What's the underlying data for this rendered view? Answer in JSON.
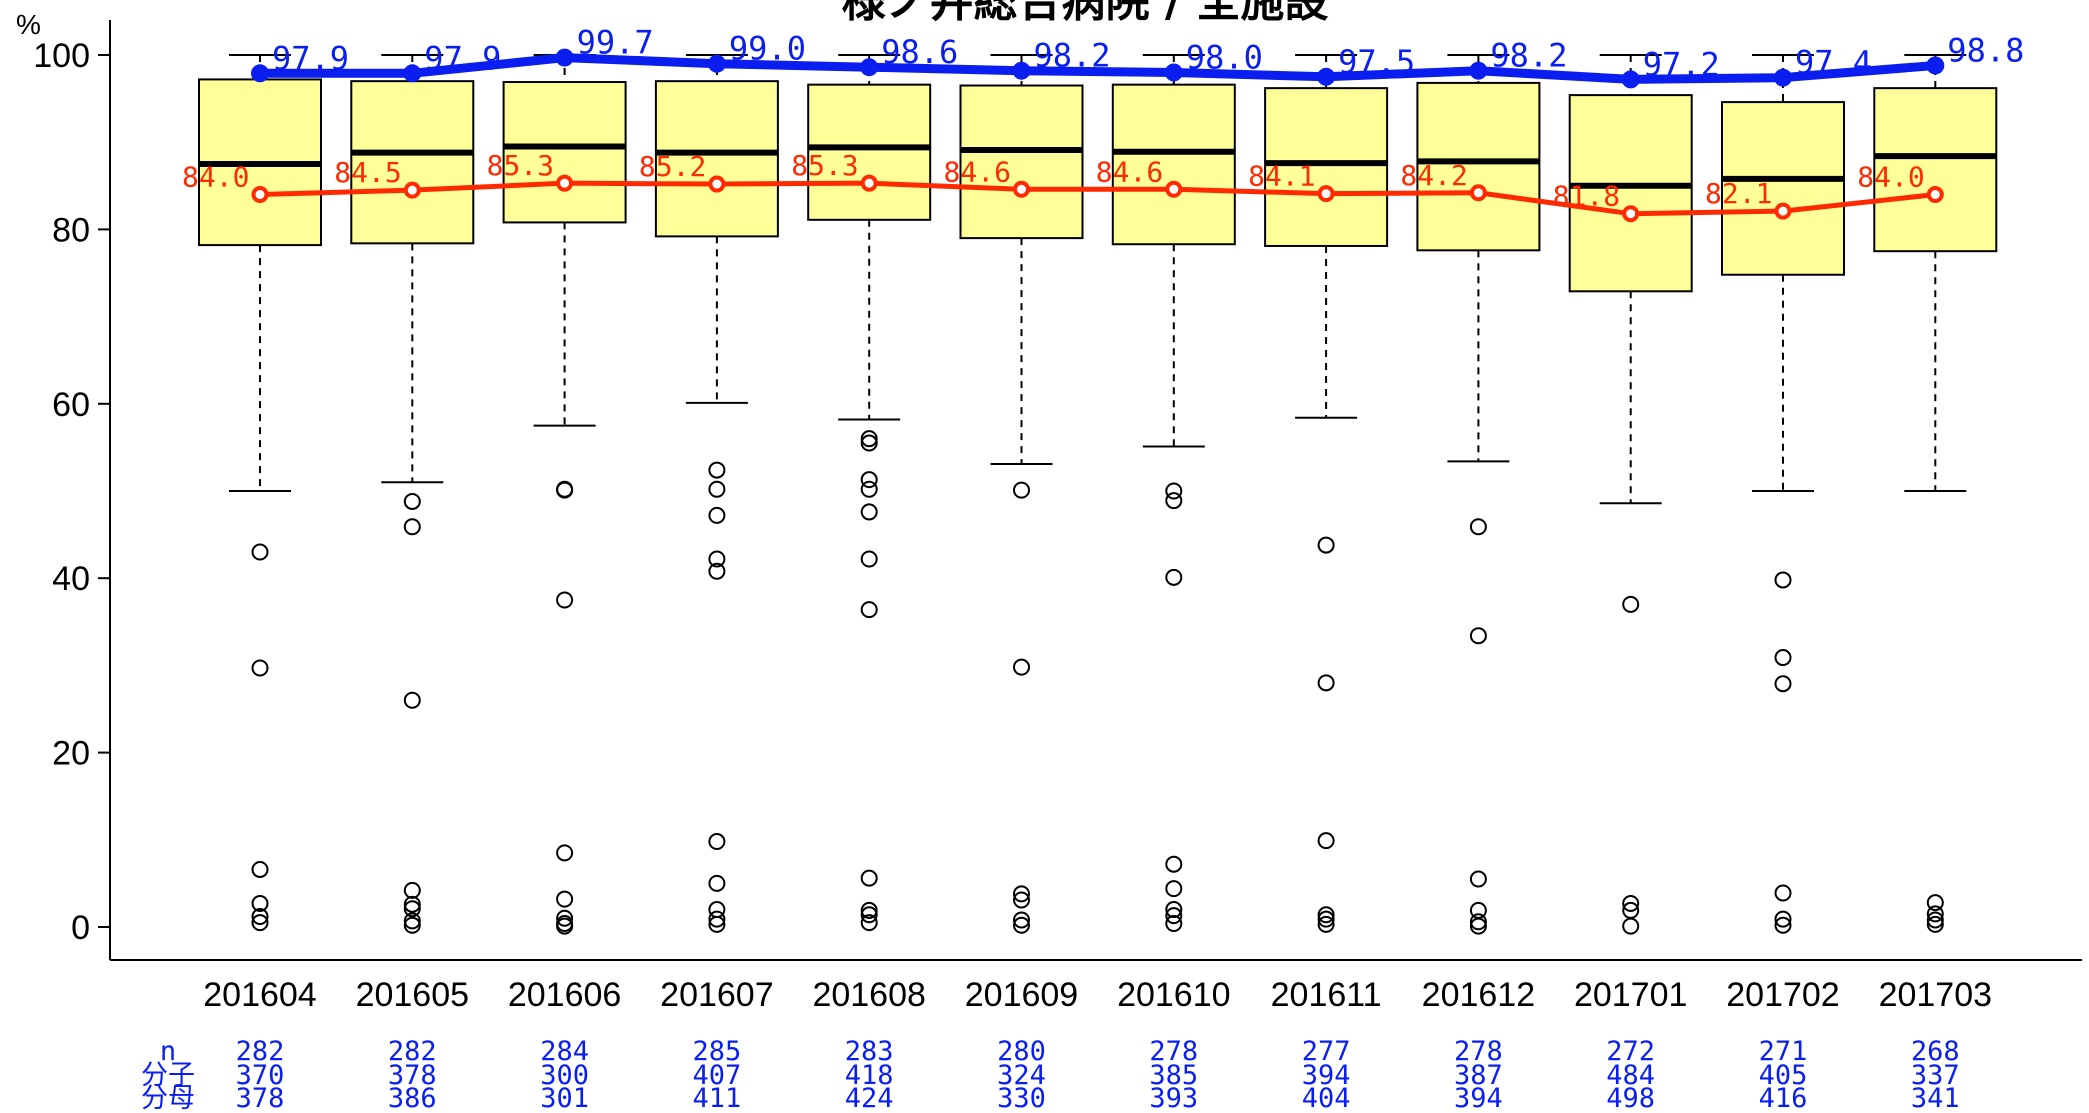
{
  "chart_data": {
    "type": "boxplot",
    "title": "様ノ井総合病院 / 全施設",
    "ylabel": "%",
    "ylim": [
      0,
      100
    ],
    "yticks": [
      0,
      20,
      40,
      60,
      80,
      100
    ],
    "categories": [
      "201604",
      "201605",
      "201606",
      "201607",
      "201608",
      "201609",
      "201610",
      "201611",
      "201612",
      "201701",
      "201702",
      "201703"
    ],
    "boxes": [
      {
        "whisker_low": 50.0,
        "q1": 78.2,
        "median": 87.5,
        "q3": 97.2,
        "whisker_high": 100,
        "outliers": [
          43.0,
          29.7,
          6.6,
          2.7,
          1.2,
          0.5
        ]
      },
      {
        "whisker_low": 51.0,
        "q1": 78.4,
        "median": 88.8,
        "q3": 97.0,
        "whisker_high": 100,
        "outliers": [
          48.8,
          45.9,
          26.0,
          4.2,
          2.6,
          2.1,
          0.7,
          0.2
        ]
      },
      {
        "whisker_low": 57.5,
        "q1": 80.8,
        "median": 89.5,
        "q3": 96.9,
        "whisker_high": 100,
        "outliers": [
          50.2,
          50.1,
          37.5,
          8.5,
          3.2,
          1.0,
          0.4,
          0.1
        ]
      },
      {
        "whisker_low": 60.1,
        "q1": 79.2,
        "median": 88.8,
        "q3": 97.0,
        "whisker_high": 100,
        "outliers": [
          52.4,
          50.2,
          47.2,
          42.2,
          40.8,
          9.8,
          5.0,
          2.0,
          0.9,
          0.3
        ]
      },
      {
        "whisker_low": 58.2,
        "q1": 81.1,
        "median": 89.4,
        "q3": 96.6,
        "whisker_high": 100,
        "outliers": [
          56.0,
          55.5,
          51.3,
          50.2,
          47.6,
          42.2,
          36.4,
          5.6,
          1.9,
          1.4,
          0.5
        ]
      },
      {
        "whisker_low": 53.1,
        "q1": 79.0,
        "median": 89.1,
        "q3": 96.5,
        "whisker_high": 100,
        "outliers": [
          50.1,
          29.8,
          3.8,
          3.1,
          0.8,
          0.2
        ]
      },
      {
        "whisker_low": 55.1,
        "q1": 78.3,
        "median": 88.9,
        "q3": 96.6,
        "whisker_high": 100,
        "outliers": [
          50.0,
          48.9,
          40.1,
          7.2,
          4.4,
          2.0,
          1.3,
          0.4
        ]
      },
      {
        "whisker_low": 58.4,
        "q1": 78.1,
        "median": 87.6,
        "q3": 96.2,
        "whisker_high": 100,
        "outliers": [
          43.8,
          28.0,
          9.9,
          1.4,
          0.9,
          0.3
        ]
      },
      {
        "whisker_low": 53.4,
        "q1": 77.6,
        "median": 87.8,
        "q3": 96.8,
        "whisker_high": 100,
        "outliers": [
          45.9,
          33.4,
          5.5,
          1.9,
          0.6,
          0.1
        ]
      },
      {
        "whisker_low": 48.6,
        "q1": 72.9,
        "median": 85.0,
        "q3": 95.4,
        "whisker_high": 100,
        "outliers": [
          37.0,
          2.7,
          1.9,
          0.1
        ]
      },
      {
        "whisker_low": 50.0,
        "q1": 74.8,
        "median": 85.8,
        "q3": 94.6,
        "whisker_high": 100,
        "outliers": [
          39.8,
          30.9,
          27.9,
          3.9,
          0.9,
          0.2
        ]
      },
      {
        "whisker_low": 50.0,
        "q1": 77.5,
        "median": 88.4,
        "q3": 96.2,
        "whisker_high": 100,
        "outliers": [
          2.8,
          1.5,
          0.8,
          0.3
        ]
      }
    ],
    "series": [
      {
        "values": [
          97.9,
          97.9,
          99.7,
          99.0,
          98.6,
          98.2,
          98.0,
          97.5,
          98.2,
          97.2,
          97.4,
          98.8
        ],
        "color": "#0a1ef0"
      },
      {
        "values": [
          84.0,
          84.5,
          85.3,
          85.2,
          85.3,
          84.6,
          84.6,
          84.1,
          84.2,
          81.8,
          82.1,
          84.0
        ],
        "color": "#ff2a00"
      }
    ],
    "count_rows": [
      {
        "label": "n",
        "values": [
          "282",
          "282",
          "284",
          "285",
          "283",
          "280",
          "278",
          "277",
          "278",
          "272",
          "271",
          "268"
        ]
      },
      {
        "label": "分子",
        "values": [
          "370",
          "378",
          "300",
          "407",
          "418",
          "324",
          "385",
          "394",
          "387",
          "484",
          "405",
          "337"
        ]
      },
      {
        "label": "分母",
        "values": [
          "378",
          "386",
          "301",
          "411",
          "424",
          "330",
          "393",
          "404",
          "394",
          "498",
          "416",
          "341"
        ]
      }
    ],
    "box_fill": "#ffff99",
    "count_color": "#0a1ef0",
    "grid": false,
    "legend": "none"
  }
}
